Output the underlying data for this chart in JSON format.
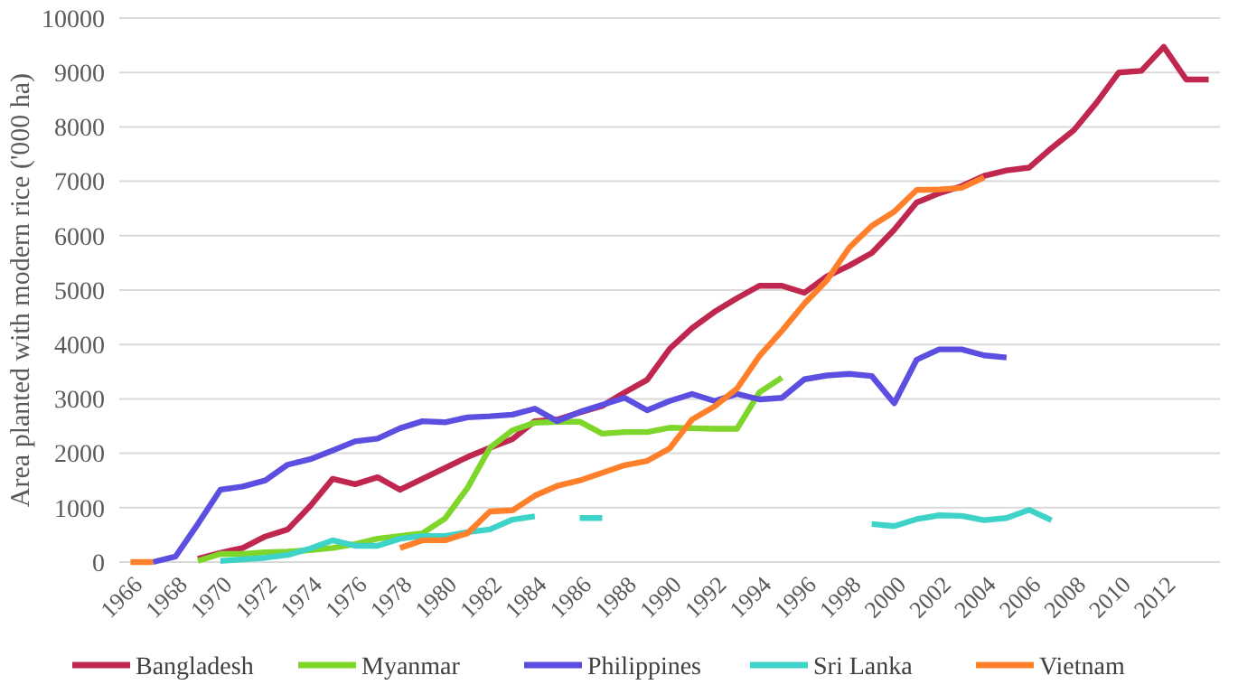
{
  "chart_data": {
    "type": "line",
    "ylabel": "Area planted with modern rice  ('000 ha)",
    "x": [
      1966,
      1967,
      1968,
      1969,
      1970,
      1971,
      1972,
      1973,
      1974,
      1975,
      1976,
      1977,
      1978,
      1979,
      1980,
      1981,
      1982,
      1983,
      1984,
      1985,
      1986,
      1987,
      1988,
      1989,
      1990,
      1991,
      1992,
      1993,
      1994,
      1995,
      1996,
      1997,
      1998,
      1999,
      2000,
      2001,
      2002,
      2003,
      2004,
      2005,
      2006,
      2007,
      2008,
      2009,
      2010,
      2011,
      2012,
      2013,
      2014
    ],
    "xlim": [
      1965.5,
      2014.5
    ],
    "xticks": [
      1966,
      1968,
      1970,
      1972,
      1974,
      1976,
      1978,
      1980,
      1982,
      1984,
      1986,
      1988,
      1990,
      1992,
      1994,
      1996,
      1998,
      2000,
      2002,
      2004,
      2006,
      2008,
      2010,
      2012
    ],
    "ylim": [
      0,
      10000
    ],
    "yticks": [
      0,
      1000,
      2000,
      3000,
      4000,
      5000,
      6000,
      7000,
      8000,
      9000,
      10000
    ],
    "grid": "y",
    "legend": "bottom",
    "marker": "none",
    "line_style": "solid",
    "series": [
      {
        "name": "Bangladesh",
        "color": "#c0274f",
        "values": [
          null,
          null,
          null,
          60,
          170,
          260,
          470,
          600,
          1030,
          1530,
          1430,
          1560,
          1330,
          1530,
          1730,
          1930,
          2100,
          2260,
          2590,
          2620,
          2750,
          2870,
          3120,
          3350,
          3920,
          4300,
          4600,
          4850,
          5080,
          5080,
          4950,
          5250,
          5450,
          5680,
          6110,
          6610,
          6780,
          6910,
          7100,
          7200,
          7250,
          7610,
          7940,
          8440,
          9000,
          9030,
          9470,
          8870,
          8870
        ]
      },
      {
        "name": "Myanmar",
        "color": "#7ed62a",
        "values": [
          null,
          null,
          null,
          20,
          150,
          150,
          180,
          190,
          220,
          260,
          330,
          430,
          480,
          530,
          800,
          1360,
          2100,
          2420,
          2560,
          2580,
          2580,
          2360,
          2390,
          2390,
          2470,
          2460,
          2450,
          2450,
          3120,
          3390,
          null,
          null,
          null,
          null,
          null,
          null,
          null,
          null,
          null,
          null,
          null,
          null,
          null,
          null,
          null,
          null,
          null,
          null,
          null
        ]
      },
      {
        "name": "Philippines",
        "color": "#5b4ee0",
        "values": [
          null,
          0,
          100,
          700,
          1330,
          1390,
          1500,
          1790,
          1890,
          2050,
          2220,
          2270,
          2460,
          2590,
          2570,
          2660,
          2680,
          2710,
          2820,
          2590,
          2760,
          2890,
          3020,
          2790,
          2960,
          3090,
          2960,
          3090,
          2990,
          3020,
          3360,
          3430,
          3460,
          3420,
          2920,
          3720,
          3910,
          3910,
          3800,
          3760,
          null,
          null,
          null,
          null,
          null,
          null,
          null,
          null,
          null
        ]
      },
      {
        "name": "Sri Lanka",
        "color": "#3ed3c8",
        "values": [
          null,
          null,
          null,
          null,
          20,
          50,
          80,
          130,
          250,
          400,
          300,
          300,
          430,
          480,
          480,
          550,
          600,
          780,
          840,
          null,
          810,
          810,
          null,
          null,
          null,
          null,
          null,
          null,
          null,
          null,
          null,
          null,
          null,
          700,
          660,
          790,
          860,
          850,
          770,
          810,
          960,
          770,
          null,
          null,
          null,
          null,
          null,
          null,
          null
        ]
      },
      {
        "name": "Vietnam",
        "color": "#ff7f2a",
        "values": [
          0,
          0,
          null,
          null,
          null,
          null,
          null,
          null,
          null,
          null,
          null,
          null,
          260,
          400,
          400,
          530,
          930,
          950,
          1220,
          1400,
          1500,
          1640,
          1780,
          1860,
          2090,
          2620,
          2860,
          3190,
          3790,
          4250,
          4750,
          5180,
          5780,
          6180,
          6440,
          6840,
          6850,
          6880,
          7070,
          null,
          null,
          null,
          null,
          null,
          null,
          null,
          null,
          null,
          null
        ]
      }
    ]
  }
}
